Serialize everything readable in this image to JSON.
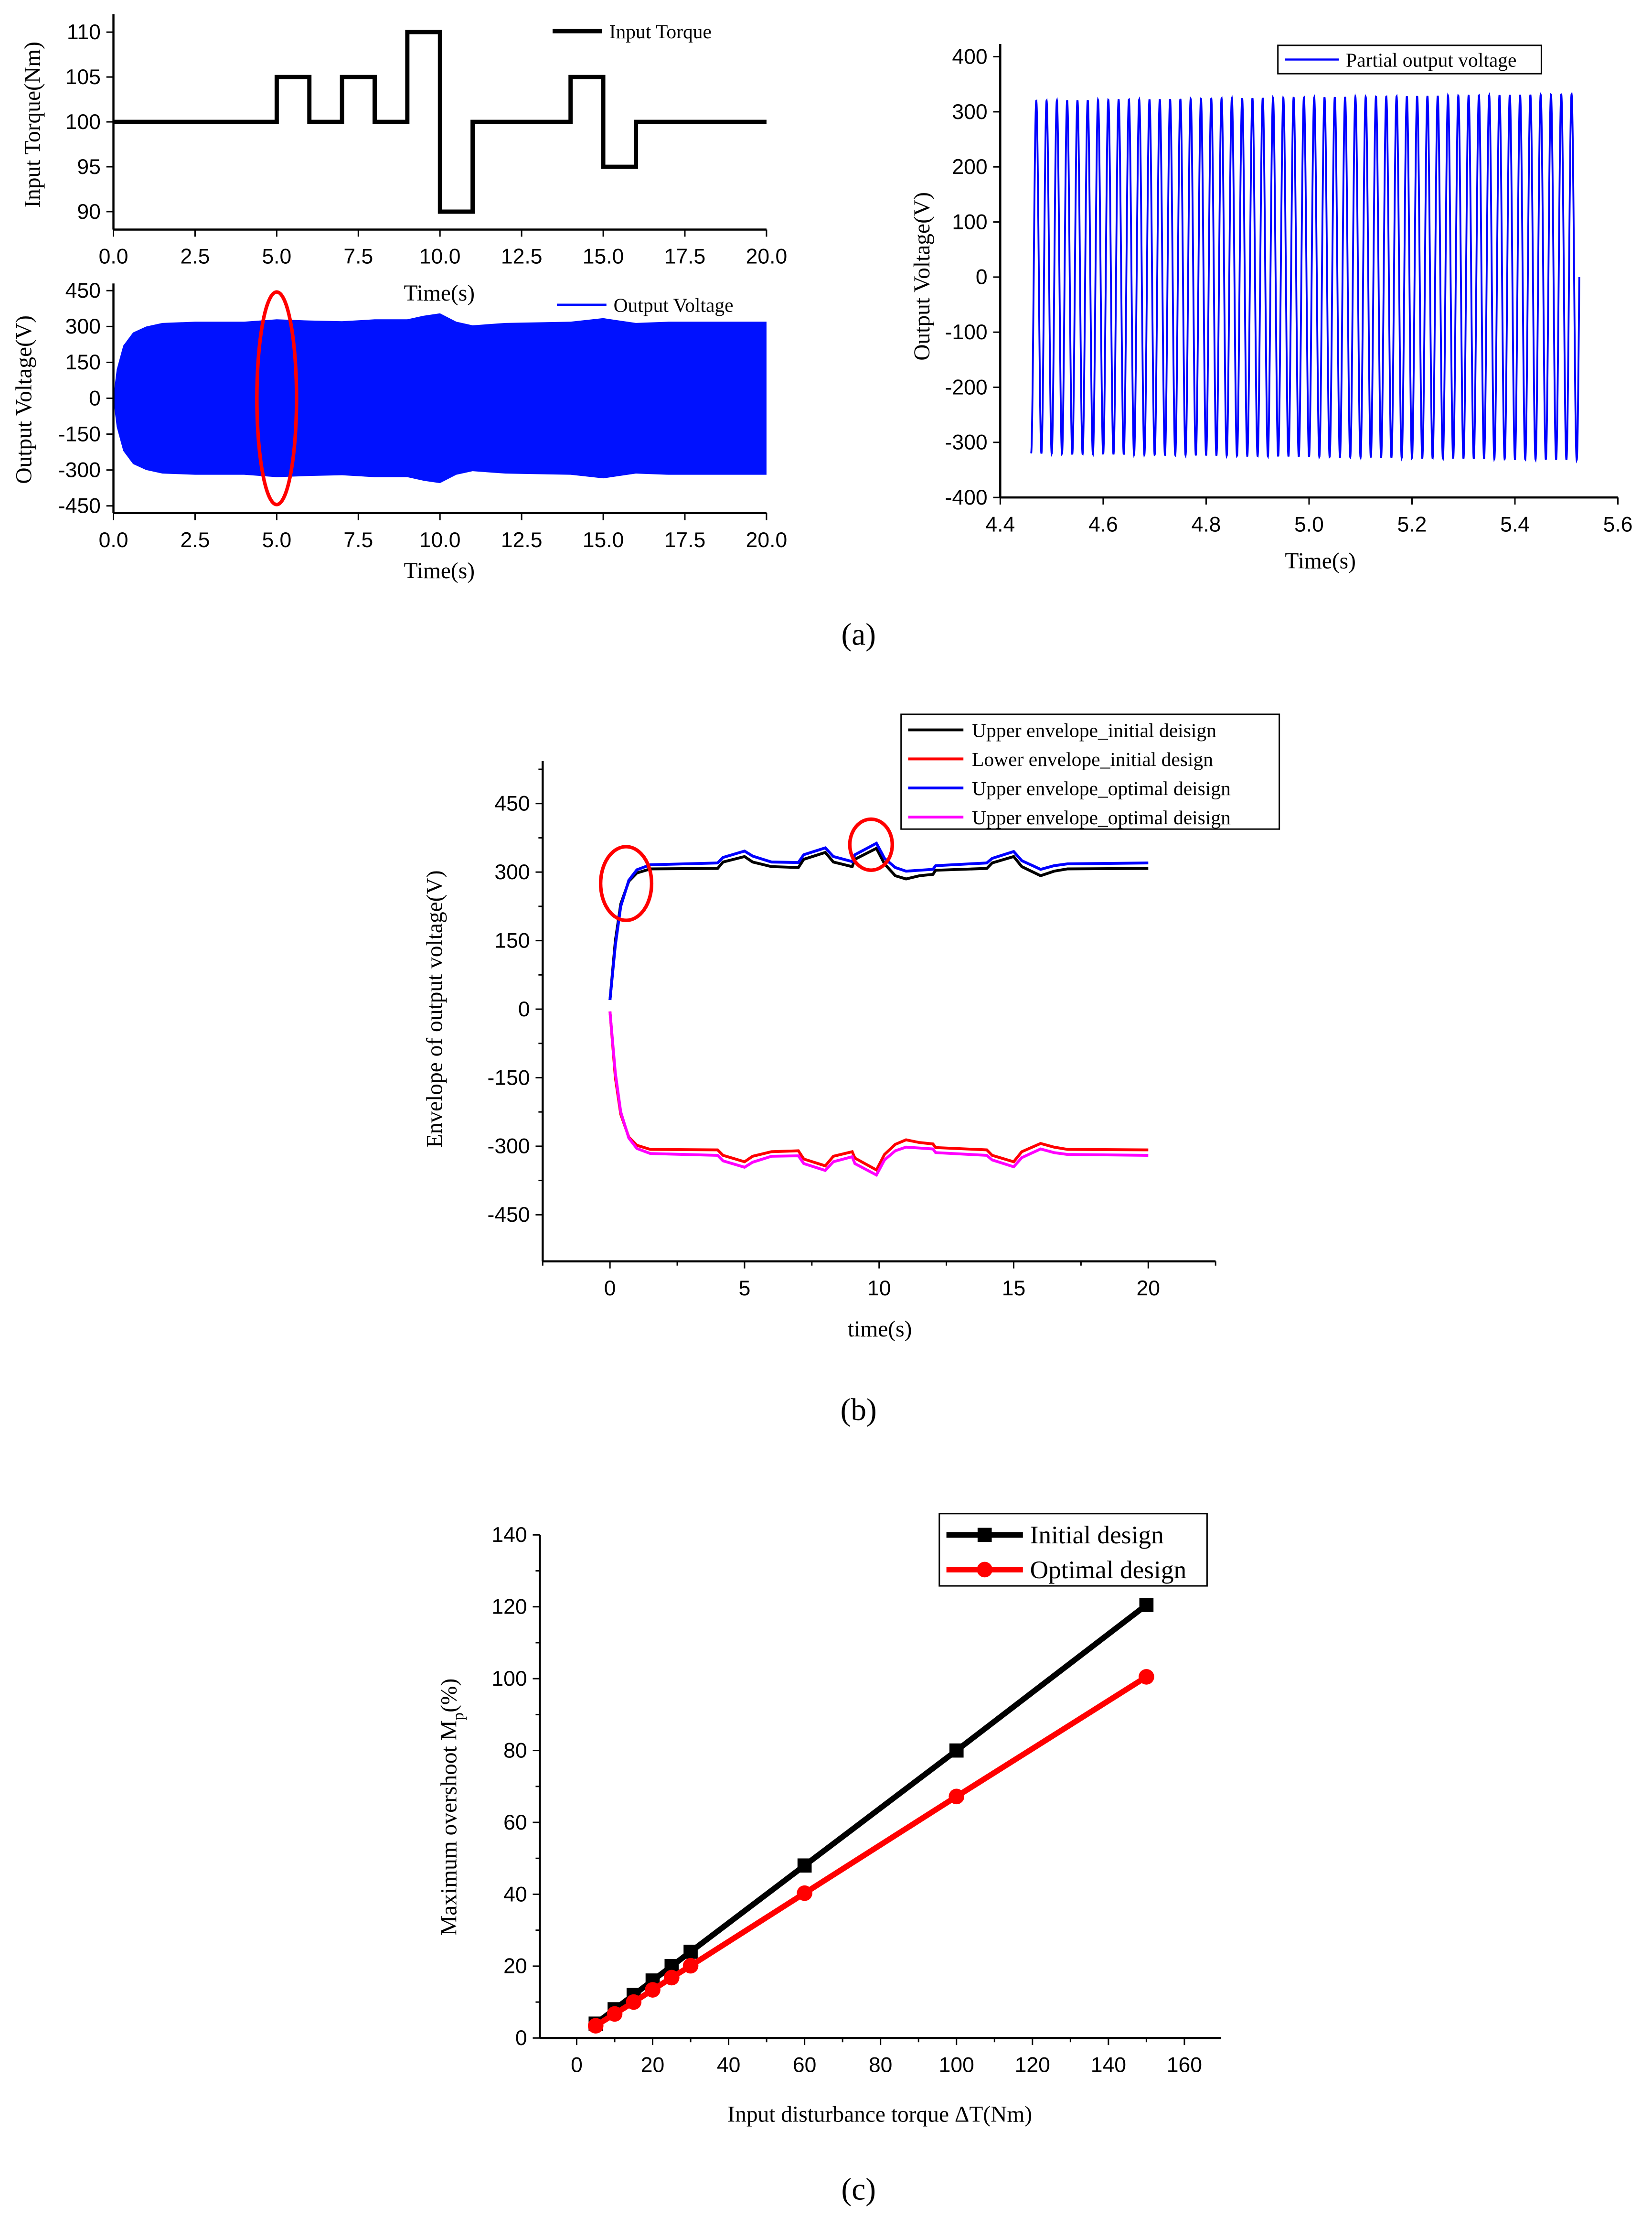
{
  "captions": {
    "a": "(a)",
    "b": "(b)",
    "c": "(c)"
  },
  "colors": {
    "black": "#000000",
    "red": "#ff0000",
    "blue": "#0000ff",
    "magenta": "#ff00ff",
    "fill_blue": "#0011ff"
  },
  "chart_data": [
    {
      "id": "a1",
      "type": "line",
      "xlabel": "Time(s)",
      "ylabel": "Input Torque(Nm)",
      "xlim": [
        0,
        20
      ],
      "ylim": [
        88,
        112
      ],
      "xticks": [
        0,
        2.5,
        5,
        7.5,
        10,
        12.5,
        15,
        17.5,
        20
      ],
      "xticklabels": [
        "0.0",
        "2.5",
        "5.0",
        "7.5",
        "10.0",
        "12.5",
        "15.0",
        "17.5",
        "20.0"
      ],
      "yticks": [
        90,
        95,
        100,
        105,
        110
      ],
      "yticklabels": [
        "90",
        "95",
        "100",
        "105",
        "110"
      ],
      "legend": "top-right",
      "series": [
        {
          "name": "Input Torque",
          "color": "#000000",
          "step": true,
          "points": [
            [
              0,
              100
            ],
            [
              5,
              100
            ],
            [
              5,
              105
            ],
            [
              6,
              105
            ],
            [
              6,
              100
            ],
            [
              7,
              100
            ],
            [
              7,
              105
            ],
            [
              8,
              105
            ],
            [
              8,
              100
            ],
            [
              9,
              100
            ],
            [
              9,
              110
            ],
            [
              10,
              110
            ],
            [
              10,
              90
            ],
            [
              11,
              90
            ],
            [
              11,
              100
            ],
            [
              14,
              100
            ],
            [
              14,
              105
            ],
            [
              15,
              105
            ],
            [
              15,
              95
            ],
            [
              16,
              95
            ],
            [
              16,
              100
            ],
            [
              20,
              100
            ]
          ]
        }
      ]
    },
    {
      "id": "a2",
      "type": "area",
      "xlabel": "Time(s)",
      "ylabel": "Output Voltage(V)",
      "xlim": [
        0,
        20
      ],
      "ylim": [
        -480,
        480
      ],
      "xticks": [
        0,
        2.5,
        5,
        7.5,
        10,
        12.5,
        15,
        17.5,
        20
      ],
      "xticklabels": [
        "0.0",
        "2.5",
        "5.0",
        "7.5",
        "10.0",
        "12.5",
        "15.0",
        "17.5",
        "20.0"
      ],
      "yticks": [
        -450,
        -300,
        -150,
        0,
        150,
        300,
        450
      ],
      "yticklabels": [
        "-450",
        "-300",
        "-150",
        "0",
        "150",
        "300",
        "450"
      ],
      "legend": "top-right",
      "annotation": {
        "type": "ellipse",
        "center": [
          5,
          0
        ],
        "color": "#ff0000"
      },
      "series": [
        {
          "name": "Output Voltage",
          "color": "#0011ff",
          "envelope": [
            [
              0,
              10
            ],
            [
              0.1,
              120
            ],
            [
              0.3,
              220
            ],
            [
              0.6,
              275
            ],
            [
              1,
              300
            ],
            [
              1.5,
              315
            ],
            [
              2.5,
              320
            ],
            [
              4,
              320
            ],
            [
              5,
              330
            ],
            [
              6,
              325
            ],
            [
              7,
              322
            ],
            [
              8,
              330
            ],
            [
              9,
              330
            ],
            [
              9.5,
              345
            ],
            [
              10,
              355
            ],
            [
              10.5,
              320
            ],
            [
              11,
              305
            ],
            [
              12,
              315
            ],
            [
              14,
              320
            ],
            [
              15,
              335
            ],
            [
              16,
              315
            ],
            [
              17,
              320
            ],
            [
              20,
              320
            ]
          ]
        }
      ]
    },
    {
      "id": "a3",
      "type": "line",
      "xlabel": "Time(s)",
      "ylabel": "Output Voltage(V)",
      "xlim": [
        4.4,
        5.6
      ],
      "ylim": [
        -400,
        400
      ],
      "xticks": [
        4.4,
        4.6,
        4.8,
        5.0,
        5.2,
        5.4,
        5.6
      ],
      "xticklabels": [
        "4.4",
        "4.6",
        "4.8",
        "5.0",
        "5.2",
        "5.4",
        "5.6"
      ],
      "yticks": [
        -400,
        -300,
        -200,
        -100,
        0,
        100,
        200,
        300,
        400
      ],
      "yticklabels": [
        "-400",
        "-300",
        "-200",
        "-100",
        "0",
        "100",
        "200",
        "300",
        "400"
      ],
      "legend": "top-right",
      "series": [
        {
          "name": "Partial output voltage",
          "color": "#0000ff",
          "sine": {
            "t_start": 4.46,
            "t_end": 5.525,
            "frequency_hz": 50,
            "amplitude_start": 320,
            "amplitude_end": 332
          }
        }
      ]
    },
    {
      "id": "b",
      "type": "line",
      "xlabel": "time(s)",
      "ylabel": "Envelope of output voltage(V)",
      "xlim": [
        -2.5,
        22.5
      ],
      "ylim": [
        -552,
        543
      ],
      "xticks": [
        0,
        5,
        10,
        15,
        20
      ],
      "xticklabels": [
        "0",
        "5",
        "10",
        "15",
        "20"
      ],
      "yticks": [
        -450,
        -300,
        -150,
        0,
        150,
        300,
        450
      ],
      "yticklabels": [
        "-450",
        "-300",
        "-150",
        "0",
        "150",
        "300",
        "450"
      ],
      "legend": "top-right",
      "annotations": [
        {
          "type": "ellipse",
          "center": [
            0.6,
            275
          ],
          "color": "#ff0000"
        },
        {
          "type": "ellipse",
          "center": [
            9.7,
            360
          ],
          "color": "#ff0000"
        }
      ],
      "series": [
        {
          "name": "Upper envelope_initial deisign",
          "color": "#000000",
          "points": [
            [
              0,
              20
            ],
            [
              0.2,
              150
            ],
            [
              0.4,
              230
            ],
            [
              0.7,
              280
            ],
            [
              1,
              298
            ],
            [
              1.5,
              307
            ],
            [
              4,
              308
            ],
            [
              4.2,
              322
            ],
            [
              5,
              334
            ],
            [
              5.3,
              322
            ],
            [
              6,
              312
            ],
            [
              7,
              310
            ],
            [
              7.2,
              328
            ],
            [
              8,
              343
            ],
            [
              8.3,
              322
            ],
            [
              9,
              312
            ],
            [
              9.1,
              328
            ],
            [
              9.9,
              352
            ],
            [
              10.2,
              318
            ],
            [
              10.6,
              292
            ],
            [
              11,
              285
            ],
            [
              11.5,
              292
            ],
            [
              12,
              295
            ],
            [
              12.1,
              304
            ],
            [
              14,
              308
            ],
            [
              14.2,
              320
            ],
            [
              15,
              334
            ],
            [
              15.3,
              312
            ],
            [
              16,
              292
            ],
            [
              16.5,
              302
            ],
            [
              17,
              307
            ],
            [
              20,
              308
            ]
          ]
        },
        {
          "name": "Lower envelope_initial design",
          "color": "#ff0000",
          "points": [
            [
              0,
              -5
            ],
            [
              0.2,
              -150
            ],
            [
              0.4,
              -230
            ],
            [
              0.7,
              -280
            ],
            [
              1,
              -298
            ],
            [
              1.5,
              -307
            ],
            [
              4,
              -308
            ],
            [
              4.2,
              -320
            ],
            [
              5,
              -334
            ],
            [
              5.3,
              -322
            ],
            [
              6,
              -312
            ],
            [
              7,
              -310
            ],
            [
              7.2,
              -328
            ],
            [
              8,
              -343
            ],
            [
              8.3,
              -322
            ],
            [
              9,
              -312
            ],
            [
              9.1,
              -326
            ],
            [
              9.9,
              -352
            ],
            [
              10.2,
              -318
            ],
            [
              10.6,
              -296
            ],
            [
              11,
              -286
            ],
            [
              11.5,
              -292
            ],
            [
              12,
              -295
            ],
            [
              12.1,
              -303
            ],
            [
              14,
              -308
            ],
            [
              14.2,
              -320
            ],
            [
              15,
              -334
            ],
            [
              15.3,
              -312
            ],
            [
              16,
              -294
            ],
            [
              16.5,
              -302
            ],
            [
              17,
              -307
            ],
            [
              20,
              -308
            ]
          ]
        },
        {
          "name": "Upper envelope_optimal deisign",
          "color": "#0000ff",
          "points": [
            [
              0,
              20
            ],
            [
              0.2,
              140
            ],
            [
              0.4,
              225
            ],
            [
              0.7,
              282
            ],
            [
              1,
              305
            ],
            [
              1.5,
              316
            ],
            [
              4,
              320
            ],
            [
              4.2,
              332
            ],
            [
              5,
              346
            ],
            [
              5.3,
              335
            ],
            [
              6,
              322
            ],
            [
              7,
              321
            ],
            [
              7.2,
              338
            ],
            [
              8,
              353
            ],
            [
              8.3,
              334
            ],
            [
              9,
              323
            ],
            [
              9.1,
              338
            ],
            [
              9.9,
              363
            ],
            [
              10.2,
              330
            ],
            [
              10.6,
              310
            ],
            [
              11,
              302
            ],
            [
              11.5,
              304
            ],
            [
              12,
              306
            ],
            [
              12.1,
              314
            ],
            [
              14,
              320
            ],
            [
              14.2,
              330
            ],
            [
              15,
              345
            ],
            [
              15.3,
              325
            ],
            [
              16,
              306
            ],
            [
              16.5,
              314
            ],
            [
              17,
              318
            ],
            [
              20,
              320
            ]
          ]
        },
        {
          "name": "Upper envelope_optimal deisign",
          "color": "#ff00ff",
          "points": [
            [
              0,
              -5
            ],
            [
              0.2,
              -140
            ],
            [
              0.4,
              -225
            ],
            [
              0.7,
              -282
            ],
            [
              1,
              -305
            ],
            [
              1.5,
              -316
            ],
            [
              4,
              -320
            ],
            [
              4.2,
              -332
            ],
            [
              5,
              -346
            ],
            [
              5.3,
              -335
            ],
            [
              6,
              -322
            ],
            [
              7,
              -321
            ],
            [
              7.2,
              -338
            ],
            [
              8,
              -353
            ],
            [
              8.3,
              -334
            ],
            [
              9,
              -323
            ],
            [
              9.1,
              -338
            ],
            [
              9.9,
              -363
            ],
            [
              10.2,
              -330
            ],
            [
              10.6,
              -310
            ],
            [
              11,
              -302
            ],
            [
              11.5,
              -304
            ],
            [
              12,
              -306
            ],
            [
              12.1,
              -314
            ],
            [
              14,
              -320
            ],
            [
              14.2,
              -330
            ],
            [
              15,
              -345
            ],
            [
              15.3,
              -325
            ],
            [
              16,
              -306
            ],
            [
              16.5,
              -314
            ],
            [
              17,
              -318
            ],
            [
              20,
              -320
            ]
          ]
        }
      ]
    },
    {
      "id": "c",
      "type": "line",
      "xlabel": "Input disturbance torque ΔT(Nm)",
      "ylabel": "Maximum overshoot M",
      "ylabel_sub": "p",
      "ylabel_tail": "(%)",
      "xlim": [
        -9.7,
        169.7
      ],
      "ylim": [
        0,
        140
      ],
      "xticks": [
        0,
        20,
        40,
        60,
        80,
        100,
        120,
        140,
        160
      ],
      "xticklabels": [
        "0",
        "20",
        "40",
        "60",
        "80",
        "100",
        "120",
        "140",
        "160"
      ],
      "yticks": [
        0,
        20,
        40,
        60,
        80,
        100,
        120,
        140
      ],
      "yticklabels": [
        "0",
        "20",
        "40",
        "60",
        "80",
        "100",
        "120",
        "140"
      ],
      "legend": "top-right",
      "x": [
        5,
        10,
        15,
        20,
        25,
        30,
        60,
        100,
        150
      ],
      "series": [
        {
          "name": "Initial design",
          "color": "#000000",
          "marker": "square",
          "values": [
            4,
            8,
            12,
            16,
            20,
            24,
            48,
            80,
            120.5
          ]
        },
        {
          "name": "Optimal design",
          "color": "#ff0000",
          "marker": "circle",
          "values": [
            3.4,
            6.7,
            10,
            13.4,
            16.8,
            20.1,
            40.3,
            67.2,
            100.5
          ]
        }
      ]
    }
  ]
}
